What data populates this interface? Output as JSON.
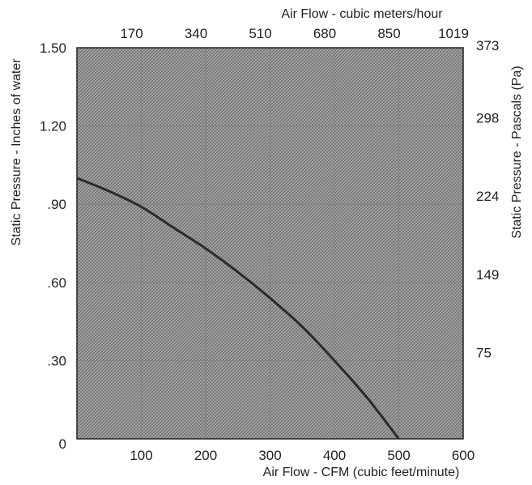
{
  "chart_data": {
    "type": "line",
    "title": "",
    "xlabel": "Air Flow - CFM (cubic feet/minute)",
    "ylabel": "Static Pressure - Inches of water",
    "x2label": "Air Flow - cubic meters/hour",
    "y2label": "Static Pressure - Pascals (Pa)",
    "xlim": [
      0,
      600
    ],
    "ylim": [
      0,
      1.5
    ],
    "grid": true,
    "legend": "none",
    "x_ticks": [
      {
        "value": 100,
        "label": "100"
      },
      {
        "value": 200,
        "label": "200"
      },
      {
        "value": 300,
        "label": "300"
      },
      {
        "value": 400,
        "label": "400"
      },
      {
        "value": 500,
        "label": "500"
      },
      {
        "value": 600,
        "label": "600"
      }
    ],
    "y_ticks": [
      {
        "value": 0,
        "label": "0"
      },
      {
        "value": 0.3,
        "label": ".30"
      },
      {
        "value": 0.6,
        "label": ".60"
      },
      {
        "value": 0.9,
        "label": ".90"
      },
      {
        "value": 1.2,
        "label": "1.20"
      },
      {
        "value": 1.5,
        "label": "1.50"
      }
    ],
    "x2_ticks": [
      {
        "value": 100,
        "label": "170"
      },
      {
        "value": 200,
        "label": "340"
      },
      {
        "value": 300,
        "label": "510"
      },
      {
        "value": 400,
        "label": "680"
      },
      {
        "value": 500,
        "label": "850"
      },
      {
        "value": 600,
        "label": "1019"
      }
    ],
    "y2_ticks": [
      {
        "value": 0.3,
        "label": "75"
      },
      {
        "value": 0.6,
        "label": "149"
      },
      {
        "value": 0.9,
        "label": "224"
      },
      {
        "value": 1.2,
        "label": "298"
      },
      {
        "value": 1.5,
        "label": "373"
      }
    ],
    "series": [
      {
        "x": [
          0,
          50,
          100,
          150,
          200,
          250,
          300,
          350,
          400,
          450,
          500
        ],
        "y": [
          1.0,
          0.95,
          0.89,
          0.81,
          0.73,
          0.64,
          0.54,
          0.43,
          0.3,
          0.16,
          0.0
        ]
      }
    ],
    "colors": {
      "plot_fill": "#aaaaaa",
      "hatch": "#6f6f6f",
      "grid": "#808080",
      "line": "#2b2b2b",
      "frame": "#222222",
      "text": "#222222"
    }
  }
}
